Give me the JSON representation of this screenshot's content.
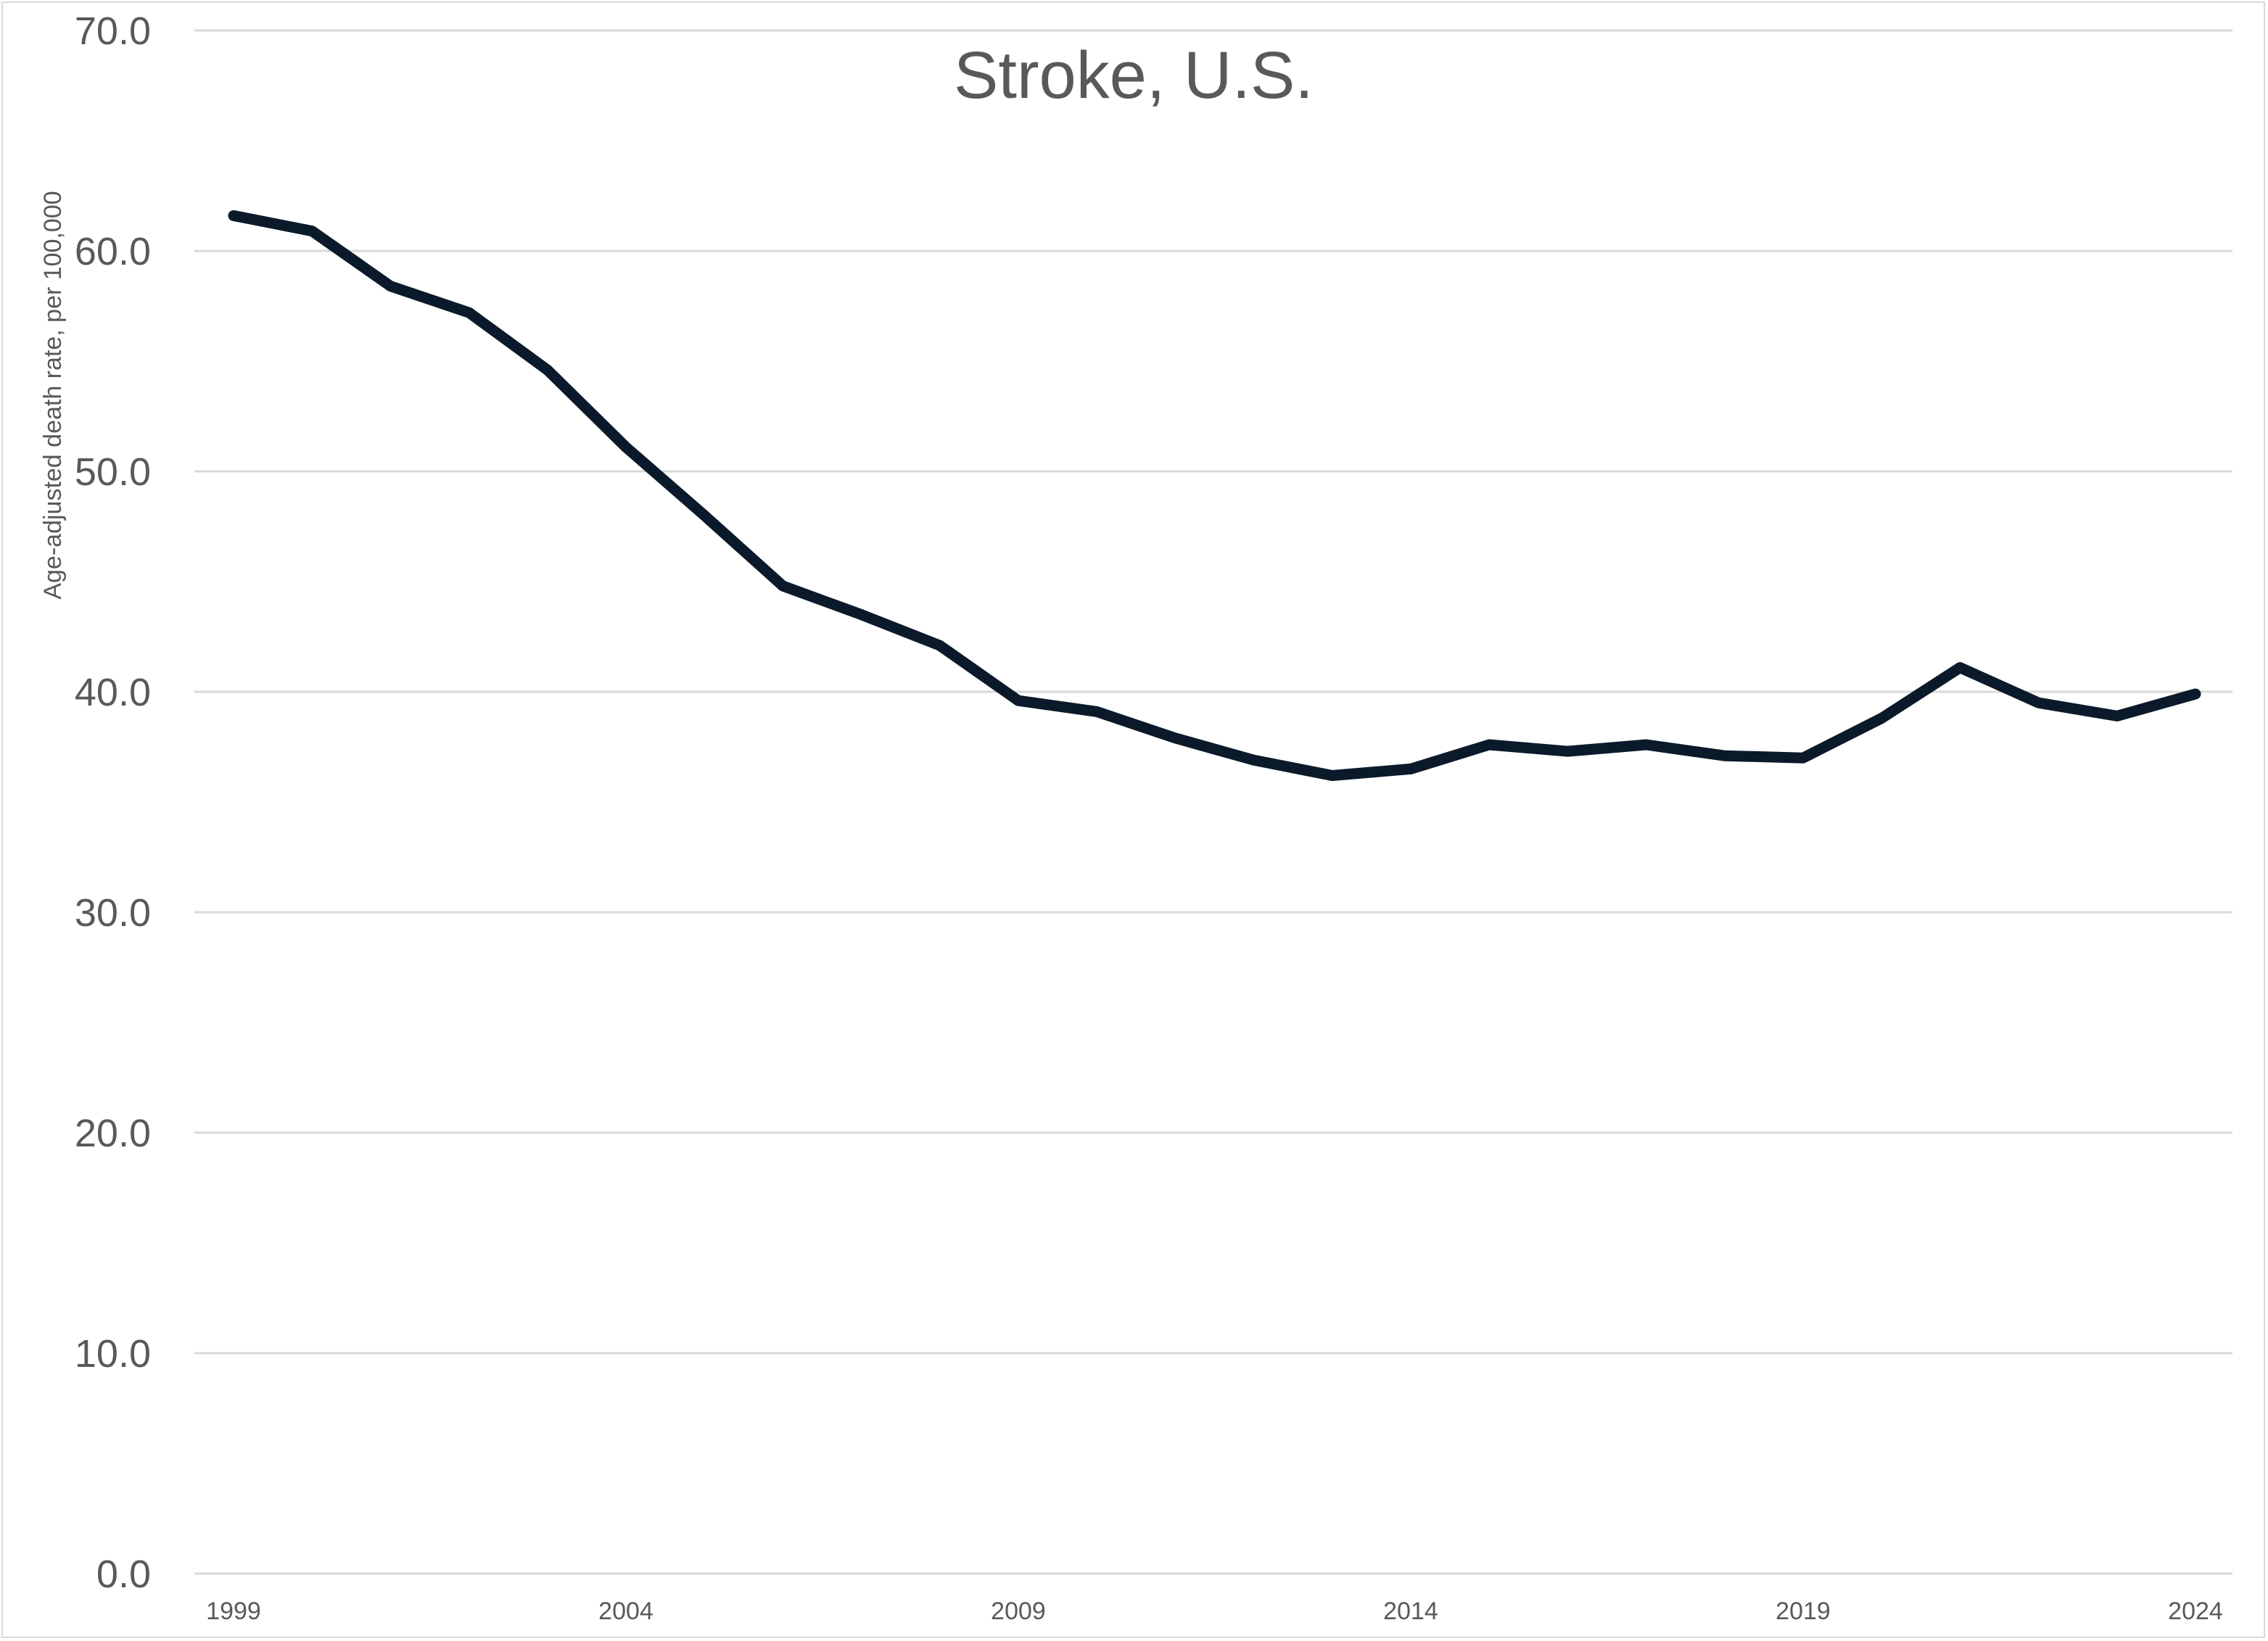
{
  "chart_data": {
    "type": "line",
    "title": "Stroke, U.S.",
    "xlabel": "",
    "ylabel": "Age-adjusted death rate, per 100,000",
    "ylim": [
      0,
      70
    ],
    "yticks": [
      "0.0",
      "10.0",
      "20.0",
      "30.0",
      "40.0",
      "50.0",
      "60.0",
      "70.0"
    ],
    "xlim": [
      1999,
      2024
    ],
    "xticks": [
      "1999",
      "2004",
      "2009",
      "2014",
      "2019",
      "2024"
    ],
    "grid": "horizontal",
    "legend": "none",
    "line_color": "#0b1a2a",
    "x": [
      1999,
      2000,
      2001,
      2002,
      2003,
      2004,
      2005,
      2006,
      2007,
      2008,
      2009,
      2010,
      2011,
      2012,
      2013,
      2014,
      2015,
      2016,
      2017,
      2018,
      2019,
      2020,
      2021,
      2022,
      2023,
      2024
    ],
    "series": [
      {
        "values": [
          61.6,
          60.9,
          58.4,
          57.2,
          54.6,
          51.1,
          48.0,
          44.8,
          43.5,
          42.1,
          39.6,
          39.1,
          37.9,
          36.9,
          36.2,
          36.5,
          37.6,
          37.3,
          37.6,
          37.1,
          37.0,
          38.8,
          41.1,
          39.5,
          38.9,
          39.9
        ]
      }
    ]
  }
}
